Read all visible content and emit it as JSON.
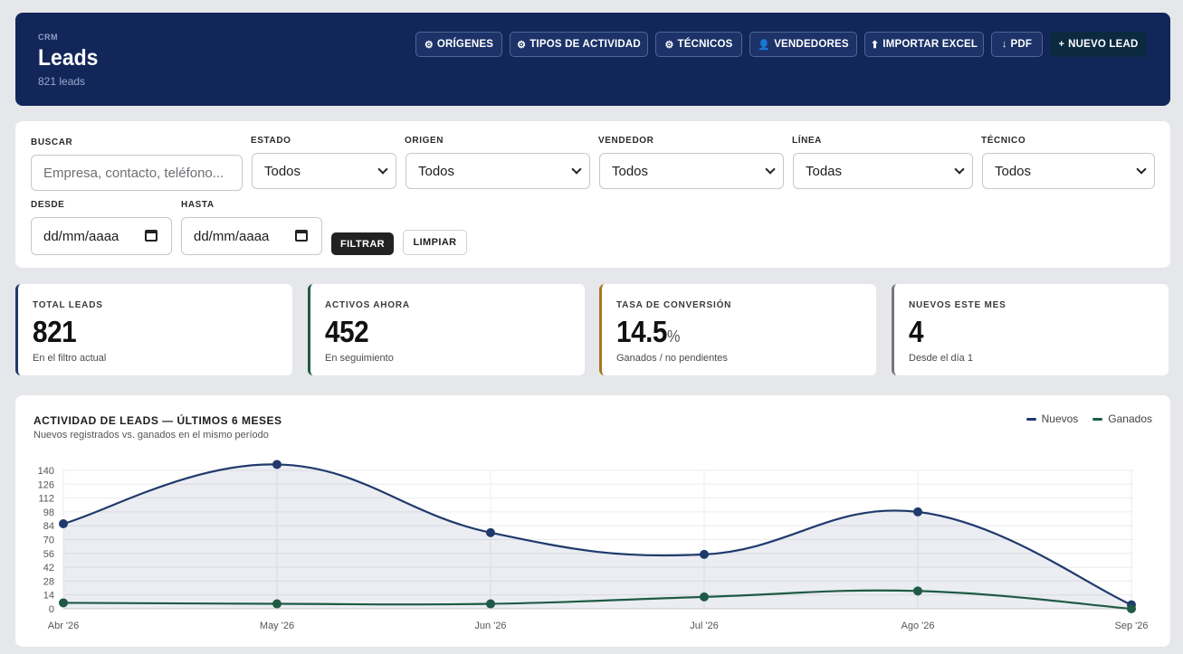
{
  "header": {
    "kicker": "CRM",
    "title": "Leads",
    "subtitle": "821 leads",
    "buttons": [
      {
        "icon": "⚙",
        "label": "ORÍGENES"
      },
      {
        "icon": "⚙",
        "label": "TIPOS DE ACTIVIDAD"
      },
      {
        "icon": "⚙",
        "label": "TÉCNICOS"
      },
      {
        "icon": "👤",
        "label": "VENDEDORES"
      },
      {
        "icon": "⬆",
        "label": "IMPORTAR EXCEL"
      },
      {
        "icon": "↓",
        "label": "PDF"
      },
      {
        "icon": "+",
        "label": "NUEVO LEAD"
      }
    ]
  },
  "filters": {
    "buscar_label": "BUSCAR",
    "buscar_placeholder": "Empresa, contacto, teléfono...",
    "estado_label": "ESTADO",
    "estado_value": "Todos",
    "origen_label": "ORIGEN",
    "origen_value": "Todos",
    "vendedor_label": "VENDEDOR",
    "vendedor_value": "Todos",
    "linea_label": "LÍNEA",
    "linea_value": "Todas",
    "tecnico_label": "TÉCNICO",
    "tecnico_value": "Todos",
    "desde_label": "DESDE",
    "desde_value": "dd/mm/aaaa",
    "hasta_label": "HASTA",
    "hasta_value": "dd/mm/aaaa",
    "filtrar_label": "FILTRAR",
    "limpiar_label": "LIMPIAR"
  },
  "stats": [
    {
      "label": "TOTAL LEADS",
      "value": "821",
      "unit": "",
      "sub": "En el filtro actual",
      "color": "#1f3a6b"
    },
    {
      "label": "ACTIVOS AHORA",
      "value": "452",
      "unit": "",
      "sub": "En seguimiento",
      "color": "#1f5a45"
    },
    {
      "label": "TASA DE CONVERSIÓN",
      "value": "14.5",
      "unit": "%",
      "sub": "Ganados / no pendientes",
      "color": "#a8761f"
    },
    {
      "label": "NUEVOS ESTE MES",
      "value": "4",
      "unit": "",
      "sub": "Desde el día 1",
      "color": "#777777"
    }
  ],
  "chart": {
    "title": "ACTIVIDAD DE LEADS — ÚLTIMOS 6 MESES",
    "subtitle": "Nuevos registrados vs. ganados en el mismo período"
  },
  "chart_data": {
    "type": "line",
    "categories": [
      "Abr '26",
      "May '26",
      "Jun '26",
      "Jul '26",
      "Ago '26",
      "Sep '26"
    ],
    "series": [
      {
        "name": "Nuevos",
        "values": [
          86,
          146,
          77,
          55,
          98,
          4
        ],
        "color": "#1f3a6b"
      },
      {
        "name": "Ganados",
        "values": [
          6,
          5,
          5,
          12,
          18,
          0
        ],
        "color": "#1f5a45"
      }
    ],
    "yticks": [
      0,
      14,
      28,
      42,
      56,
      70,
      84,
      98,
      112,
      126,
      140
    ],
    "ylim": [
      0,
      140
    ],
    "grid": true,
    "legend_position": "top-right"
  }
}
